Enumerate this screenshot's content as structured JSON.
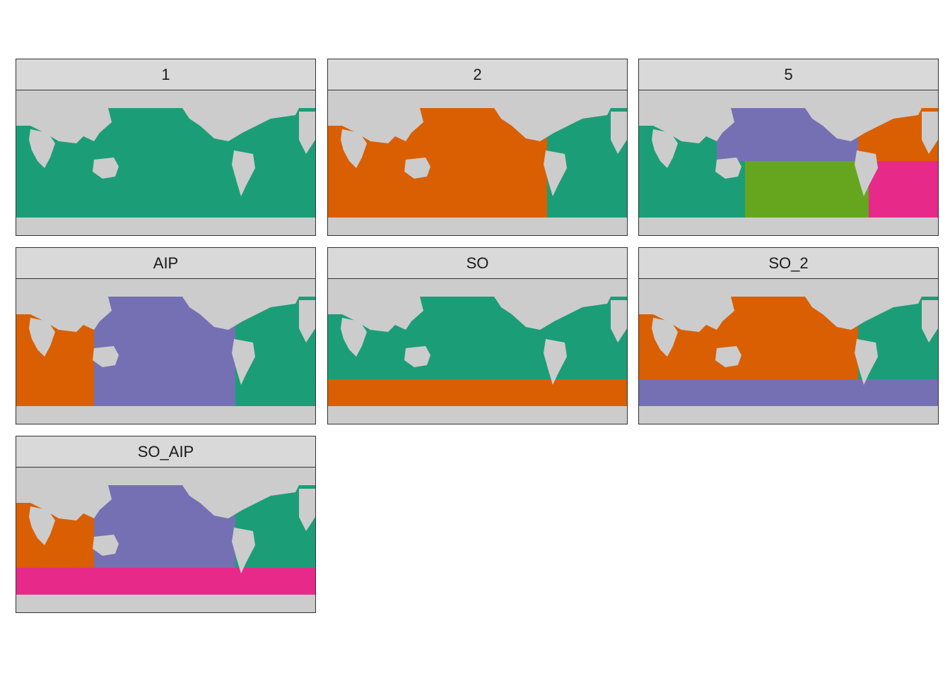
{
  "colors": {
    "land": "#cccccc",
    "grid": "#ebebeb",
    "strip_bg": "#d9d9d9",
    "region_palette": [
      "#1b9e77",
      "#d95f02",
      "#7570b3",
      "#e7298a",
      "#66a61e"
    ]
  },
  "panels": [
    {
      "label": "1",
      "regions": [
        "#1b9e77"
      ]
    },
    {
      "label": "2",
      "regions": [
        "#d95f02",
        "#1b9e77"
      ]
    },
    {
      "label": "5",
      "regions": [
        "#1b9e77",
        "#7570b3",
        "#d95f02",
        "#66a61e",
        "#e7298a"
      ]
    },
    {
      "label": "AIP",
      "regions": [
        "#d95f02",
        "#7570b3",
        "#1b9e77"
      ]
    },
    {
      "label": "SO",
      "regions": [
        "#1b9e77",
        "#d95f02"
      ]
    },
    {
      "label": "SO_2",
      "regions": [
        "#d95f02",
        "#1b9e77",
        "#7570b3"
      ]
    },
    {
      "label": "SO_AIP",
      "regions": [
        "#d95f02",
        "#7570b3",
        "#1b9e77",
        "#e7298a"
      ]
    }
  ]
}
